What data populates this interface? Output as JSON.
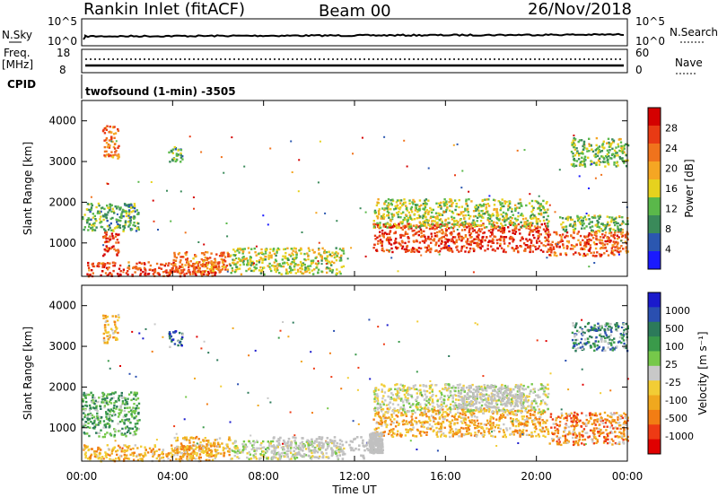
{
  "header": {
    "site": "Rankin Inlet (fitACF)",
    "beam": "Beam 00",
    "date": "26/Nov/2018"
  },
  "params": {
    "nsky_label": "N.Sky",
    "nsky_ticks": [
      "10^5",
      "10^0"
    ],
    "nsearch_label": "N.Search",
    "nsearch_ticks": [
      "10^5",
      "10^0"
    ],
    "freq_label_1": "Freq.",
    "freq_label_2": "[MHz]",
    "freq_ticks": [
      "18",
      "8"
    ],
    "nave_label": "Nave",
    "nave_ticks": [
      "60",
      "0"
    ],
    "cpid_label": "CPID",
    "cpid_text": "twofsound (1-min) -3505"
  },
  "colors": {
    "power": [
      "#1a1aff",
      "#2b57b0",
      "#3a8a5a",
      "#5ab84a",
      "#e6d21e",
      "#f5a623",
      "#f0731c",
      "#e83a14",
      "#d40000"
    ],
    "velocity": [
      "#e00000",
      "#ee3a14",
      "#f27d14",
      "#f0a81e",
      "#f2cd35",
      "#c8c8c8",
      "#76c84a",
      "#3a9a4a",
      "#2c7a5a",
      "#2a4fb0",
      "#1a1acc"
    ],
    "grey_scatter": "#c0c0c0"
  },
  "chart_data": [
    {
      "type": "heatmap",
      "name": "power",
      "ylabel": "Slant Range [km]",
      "y_ticks": [
        1000,
        2000,
        3000,
        4000
      ],
      "ylim": [
        180,
        4500
      ],
      "x_ticks": [
        "00:00",
        "04:00",
        "08:00",
        "12:00",
        "16:00",
        "20:00",
        "00:00"
      ],
      "xlim_hours": [
        0,
        24
      ],
      "colorbar_label": "Power [dB]",
      "colorbar_ticks": [
        "28",
        "24",
        "20",
        "16",
        "12",
        "8",
        "4"
      ],
      "colorbar_range": [
        0,
        30
      ],
      "regions": [
        {
          "x": [
            0.2,
            6.0
          ],
          "y": [
            200,
            550
          ],
          "level": 26
        },
        {
          "x": [
            4.0,
            6.5
          ],
          "y": [
            300,
            800
          ],
          "level": 22
        },
        {
          "x": [
            0.9,
            1.6
          ],
          "y": [
            700,
            1300
          ],
          "level": 27
        },
        {
          "x": [
            0.0,
            2.5
          ],
          "y": [
            1300,
            2000
          ],
          "level": 10
        },
        {
          "x": [
            6.5,
            11.5
          ],
          "y": [
            250,
            900
          ],
          "level": 14
        },
        {
          "x": [
            12.8,
            20.5
          ],
          "y": [
            800,
            1500
          ],
          "level": 26
        },
        {
          "x": [
            12.8,
            20.5
          ],
          "y": [
            1400,
            2100
          ],
          "level": 14
        },
        {
          "x": [
            20.5,
            24.0
          ],
          "y": [
            700,
            1300
          ],
          "level": 24
        },
        {
          "x": [
            21.0,
            24.0
          ],
          "y": [
            1300,
            1700
          ],
          "level": 12
        },
        {
          "x": [
            21.5,
            24.0
          ],
          "y": [
            2900,
            3600
          ],
          "level": 12
        },
        {
          "x": [
            0.9,
            1.6
          ],
          "y": [
            3100,
            3900
          ],
          "level": 22
        },
        {
          "x": [
            3.8,
            4.4
          ],
          "y": [
            3000,
            3400
          ],
          "level": 10
        }
      ]
    },
    {
      "type": "heatmap",
      "name": "velocity",
      "ylabel": "Slant Range [km]",
      "y_ticks": [
        1000,
        2000,
        3000,
        4000
      ],
      "ylim": [
        180,
        4500
      ],
      "x_ticks": [
        "00:00",
        "04:00",
        "08:00",
        "12:00",
        "16:00",
        "20:00",
        "00:00"
      ],
      "xlim_hours": [
        0,
        24
      ],
      "xlabel": "Time UT",
      "colorbar_label": "Velocity [m s⁻¹]",
      "colorbar_ticks": [
        "1000",
        "500",
        "100",
        "25",
        "-25",
        "-100",
        "-500",
        "-1000"
      ],
      "regions": [
        {
          "x": [
            0.0,
            6.0
          ],
          "y": [
            200,
            600
          ],
          "level": 3
        },
        {
          "x": [
            0.0,
            2.5
          ],
          "y": [
            800,
            1900
          ],
          "level": 7
        },
        {
          "x": [
            4.0,
            6.5
          ],
          "y": [
            300,
            800
          ],
          "level": 3
        },
        {
          "x": [
            6.5,
            11.5
          ],
          "y": [
            250,
            700
          ],
          "level": 5
        },
        {
          "x": [
            12.8,
            20.5
          ],
          "y": [
            800,
            1500
          ],
          "level": 3
        },
        {
          "x": [
            12.8,
            20.5
          ],
          "y": [
            1400,
            2100
          ],
          "level": 5
        },
        {
          "x": [
            20.5,
            24.0
          ],
          "y": [
            600,
            1400
          ],
          "level": 2
        },
        {
          "x": [
            21.5,
            24.0
          ],
          "y": [
            2900,
            3600
          ],
          "level": 8
        },
        {
          "x": [
            0.9,
            1.6
          ],
          "y": [
            3100,
            3800
          ],
          "level": 3
        },
        {
          "x": [
            3.8,
            4.4
          ],
          "y": [
            3000,
            3400
          ],
          "level": 9
        }
      ]
    }
  ]
}
